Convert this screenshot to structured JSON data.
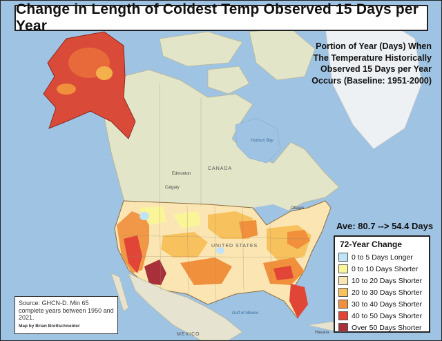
{
  "title": "Change in Length of Coldest Temp Observed 15 Days per Year",
  "subtitle_lines": [
    "Portion of Year (Days) When",
    "The Temperature Historically",
    "Observed 15 Days per Year",
    "Occurs (Baseline: 1951-2000)"
  ],
  "average_text": "Ave: 80.7 --> 54.4 Days",
  "legend": {
    "title": "72-Year Change",
    "items": [
      {
        "label": "0 to 5 Days Longer",
        "color": "#bfe3f7"
      },
      {
        "label": "0 to 10 Days Shorter",
        "color": "#fbf59a"
      },
      {
        "label": "10 to 20 Days Shorter",
        "color": "#fbe6b3"
      },
      {
        "label": "20 to 30 Days Shorter",
        "color": "#f7c25e"
      },
      {
        "label": "30 to 40 Days Shorter",
        "color": "#f08f3c"
      },
      {
        "label": "40 to 50 Days Shorter",
        "color": "#e04535"
      },
      {
        "label": "Over 50  Days Shorter",
        "color": "#a8303a"
      }
    ]
  },
  "source": {
    "text": "Source: GHCN-D. Min 65 complete years between 1950 and 2021.",
    "author": "Map by Brian Brettschneider"
  },
  "places": {
    "canada": "CANADA",
    "united_states": "UNITED STATES",
    "mexico": "MEXICO",
    "hudson_bay": "Hudson Bay",
    "gulf_of_mexico": "Gulf of Mexico",
    "edmonton": "Edmonton",
    "calgary": "Calgary",
    "ottawa": "Ottawa",
    "havana": "Havana"
  },
  "colors": {
    "ocean": "#9fc3e3",
    "land_canada": "#e3e5c9",
    "land_greenland": "#eef1f4"
  }
}
